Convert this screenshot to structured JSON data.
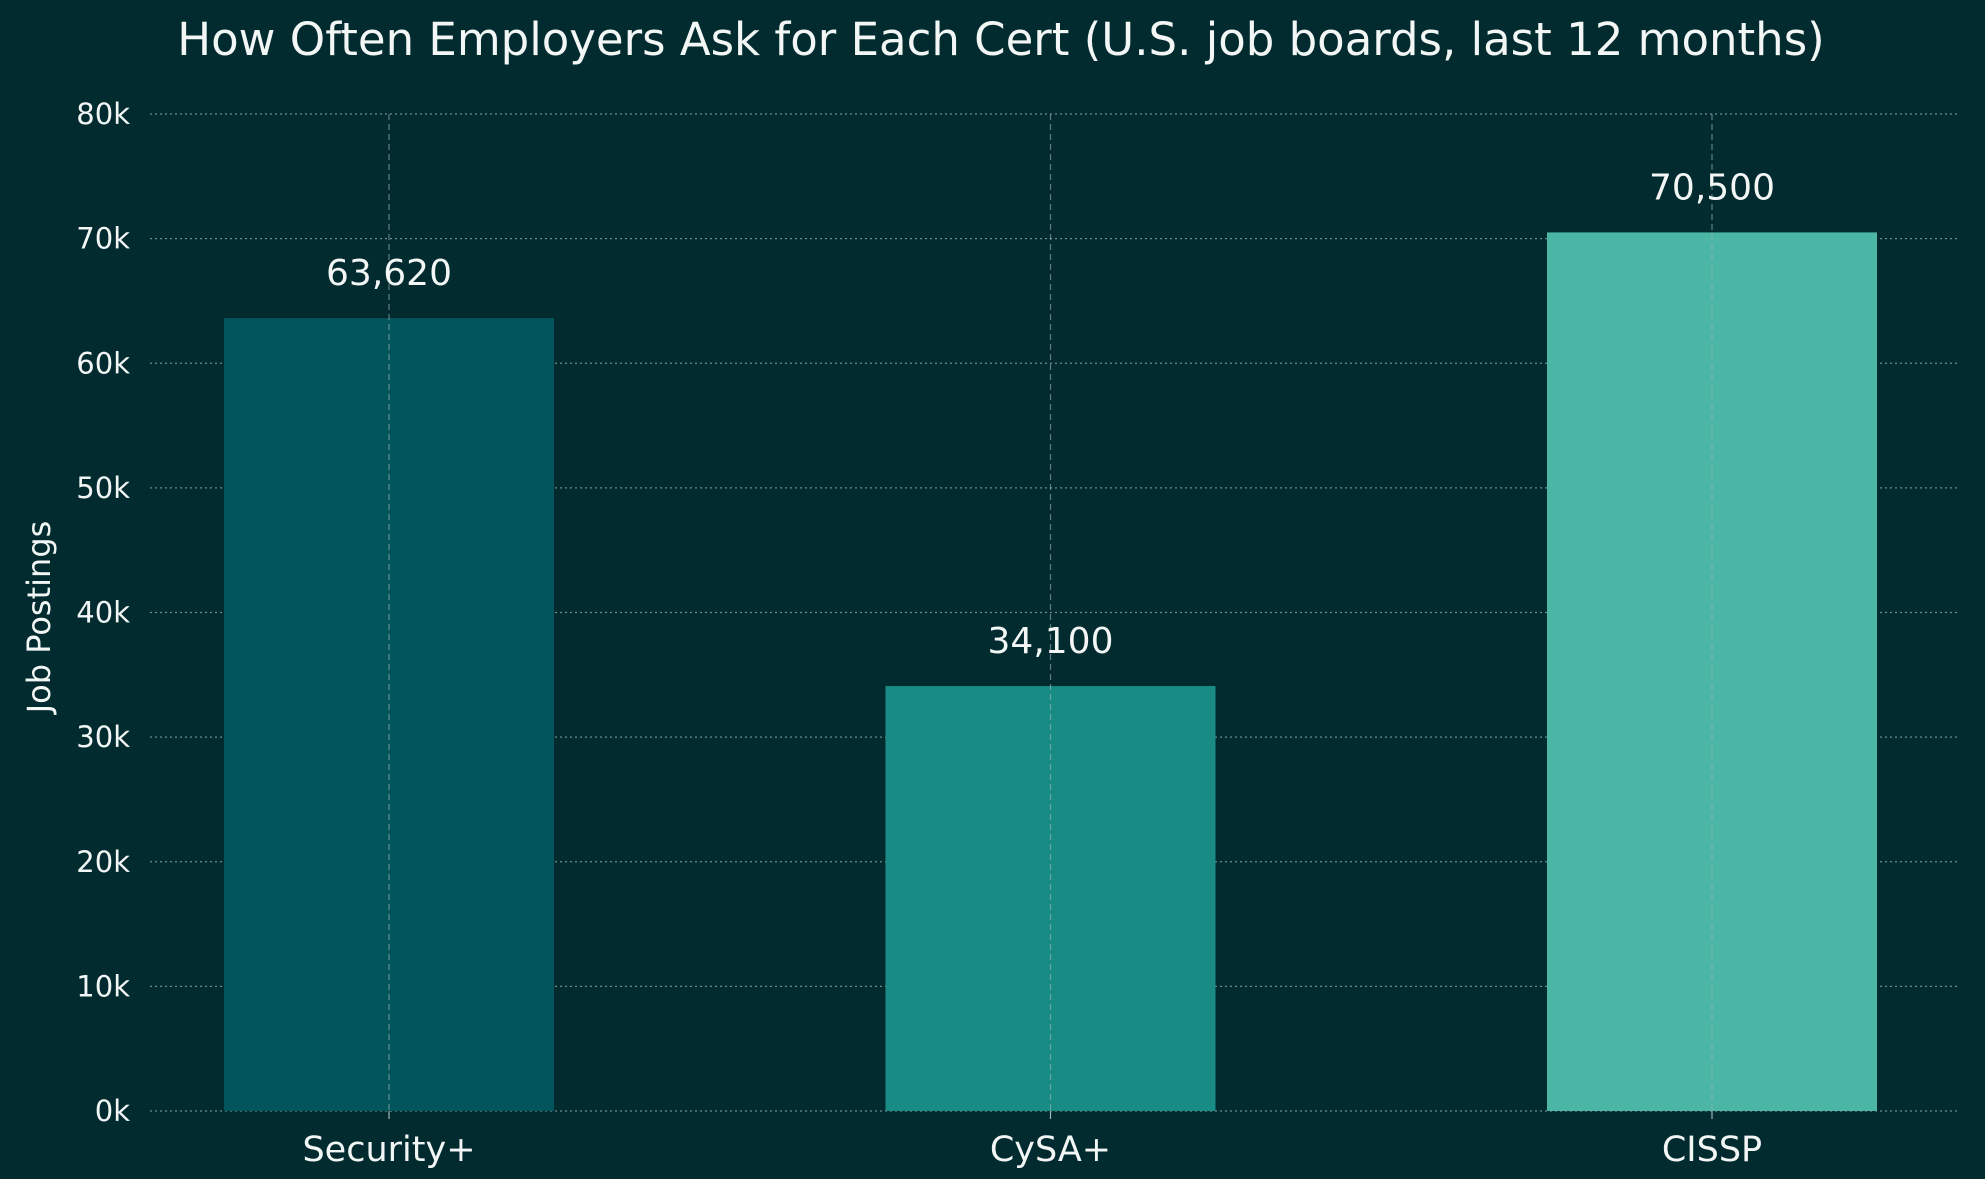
{
  "chart_data": {
    "type": "bar",
    "title": "How Often Employers Ask for Each Cert (U.S. job boards, last 12 months)",
    "xlabel": "",
    "ylabel": "Job Postings",
    "categories": [
      "Security+",
      "CySA+",
      "CISSP"
    ],
    "values": [
      63620,
      34100,
      70500
    ],
    "value_labels": [
      "63,620",
      "34,100",
      "70,500"
    ],
    "ylim": [
      0,
      80000
    ],
    "yticks": [
      0,
      10000,
      20000,
      30000,
      40000,
      50000,
      60000,
      70000,
      80000
    ],
    "ytick_labels": [
      "0k",
      "10k",
      "20k",
      "30k",
      "40k",
      "50k",
      "60k",
      "70k",
      "80k"
    ],
    "grid": true,
    "legend": "none",
    "colors": {
      "background": "#022b2f",
      "bars": [
        "#02555c",
        "#178b84",
        "#4bb5a6"
      ],
      "text": "#f2f6f5",
      "grid": "#9fb5b3"
    }
  }
}
